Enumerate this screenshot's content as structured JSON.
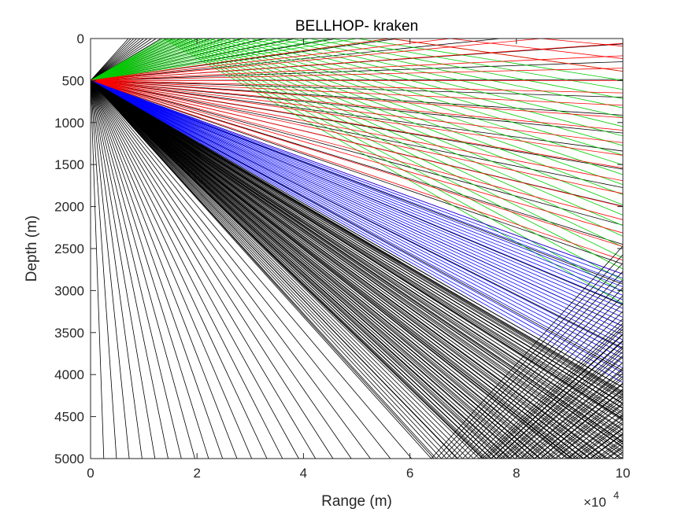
{
  "chart_data": {
    "type": "line",
    "title": "BELLHOP- kraken",
    "xlabel": "Range (m)",
    "ylabel": "Depth (m)",
    "x_exponent_base": "×10",
    "x_exponent_power": "4",
    "xlim": [
      0,
      10
    ],
    "ylim": [
      0,
      5000
    ],
    "y_reversed": true,
    "x_ticks": [
      0,
      2,
      4,
      6,
      8,
      10
    ],
    "x_tick_labels": [
      "0",
      "2",
      "4",
      "6",
      "8",
      "10"
    ],
    "y_ticks": [
      0,
      500,
      1000,
      1500,
      2000,
      2500,
      3000,
      3500,
      4000,
      4500,
      5000
    ],
    "y_tick_labels": [
      "0",
      "500",
      "1000",
      "1500",
      "2000",
      "2500",
      "3000",
      "3500",
      "4000",
      "4500",
      "5000"
    ],
    "grid": false,
    "source": {
      "x": 0,
      "depth": 500
    },
    "series": [
      {
        "color": "#000000",
        "angles_deg": [
          -48,
          88
        ],
        "count": 72,
        "max_reflections": 0
      },
      {
        "color": "#00cc00",
        "angles_deg": [
          -30,
          -8
        ],
        "count": 24,
        "max_reflections": 99
      },
      {
        "color": "#ff0000",
        "angles_deg": [
          -8,
          20
        ],
        "count": 22,
        "max_reflections": 99
      },
      {
        "color": "#0000ff",
        "angles_deg": [
          20,
          30
        ],
        "count": 26,
        "max_reflections": 99
      },
      {
        "color": "#000000",
        "angles_deg": [
          30,
          48
        ],
        "count": 44,
        "max_reflections": 1
      },
      {
        "color": "#000000",
        "angles_deg": [
          30,
          44
        ],
        "count": 44,
        "max_reflections": 99
      }
    ]
  }
}
